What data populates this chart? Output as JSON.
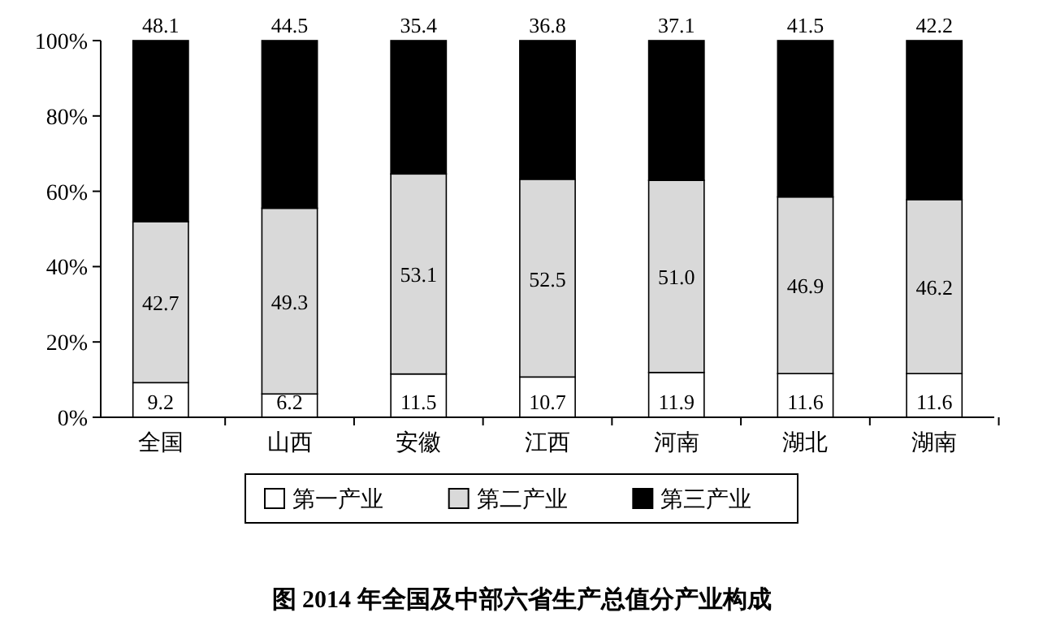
{
  "chart_data": {
    "type": "bar",
    "stacked": true,
    "title": "图  2014 年全国及中部六省生产总值分产业构成",
    "categories": [
      "全国",
      "山西",
      "安徽",
      "江西",
      "河南",
      "湖北",
      "湖南"
    ],
    "series": [
      {
        "name": "第一产业",
        "color": "#ffffff",
        "values": [
          9.2,
          6.2,
          11.5,
          10.7,
          11.9,
          11.6,
          11.6
        ],
        "value_labels": [
          "9.2",
          "6.2",
          "11.5",
          "10.7",
          "11.9",
          "11.6",
          "11.6"
        ]
      },
      {
        "name": "第二产业",
        "color": "#d9d9d9",
        "values": [
          42.7,
          49.3,
          53.1,
          52.5,
          51.0,
          46.9,
          46.2
        ],
        "value_labels": [
          "42.7",
          "49.3",
          "53.1",
          "52.5",
          "51.0",
          "46.9",
          "46.2"
        ]
      },
      {
        "name": "第三产业",
        "color": "#000000",
        "values": [
          48.1,
          44.5,
          35.4,
          36.8,
          37.1,
          41.5,
          42.2
        ],
        "value_labels": [
          "48.1",
          "44.5",
          "35.4",
          "36.8",
          "37.1",
          "41.5",
          "42.2"
        ]
      }
    ],
    "ylim": [
      0,
      100
    ],
    "yticks": [
      {
        "value": 0,
        "label": "0%"
      },
      {
        "value": 20,
        "label": "20%"
      },
      {
        "value": 40,
        "label": "40%"
      },
      {
        "value": 60,
        "label": "60%"
      },
      {
        "value": 80,
        "label": "80%"
      },
      {
        "value": 100,
        "label": "100%"
      }
    ],
    "legend": "bottom"
  }
}
